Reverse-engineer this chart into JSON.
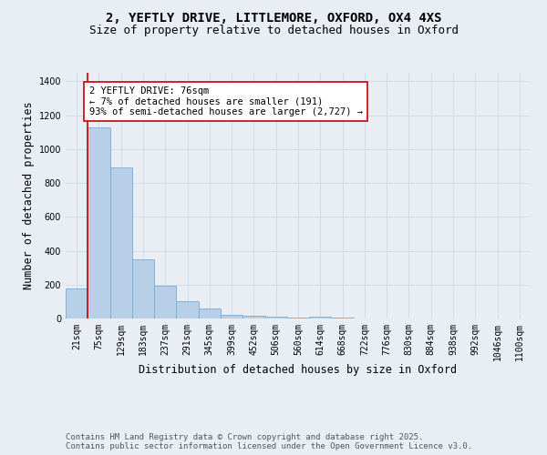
{
  "title_line1": "2, YEFTLY DRIVE, LITTLEMORE, OXFORD, OX4 4XS",
  "title_line2": "Size of property relative to detached houses in Oxford",
  "xlabel": "Distribution of detached houses by size in Oxford",
  "ylabel": "Number of detached properties",
  "categories": [
    "21sqm",
    "75sqm",
    "129sqm",
    "183sqm",
    "237sqm",
    "291sqm",
    "345sqm",
    "399sqm",
    "452sqm",
    "506sqm",
    "560sqm",
    "614sqm",
    "668sqm",
    "722sqm",
    "776sqm",
    "830sqm",
    "884sqm",
    "938sqm",
    "992sqm",
    "1046sqm",
    "1100sqm"
  ],
  "values": [
    175,
    1130,
    890,
    350,
    195,
    100,
    60,
    20,
    15,
    10,
    5,
    10,
    5,
    0,
    0,
    0,
    0,
    0,
    0,
    0,
    0
  ],
  "bar_color": "#b8cfe8",
  "bar_edge_color": "#7aaad0",
  "vline_color": "#cc0000",
  "annotation_text": "2 YEFTLY DRIVE: 76sqm\n← 7% of detached houses are smaller (191)\n93% of semi-detached houses are larger (2,727) →",
  "annotation_box_color": "#ffffff",
  "annotation_box_edge": "#cc0000",
  "ylim": [
    0,
    1450
  ],
  "yticks": [
    0,
    200,
    400,
    600,
    800,
    1000,
    1200,
    1400
  ],
  "grid_color": "#d0dce8",
  "background_color": "#e8eef4",
  "footer_text": "Contains HM Land Registry data © Crown copyright and database right 2025.\nContains public sector information licensed under the Open Government Licence v3.0.",
  "title_fontsize": 10,
  "subtitle_fontsize": 9,
  "label_fontsize": 8.5,
  "tick_fontsize": 7,
  "annotation_fontsize": 7.5,
  "footer_fontsize": 6.5
}
